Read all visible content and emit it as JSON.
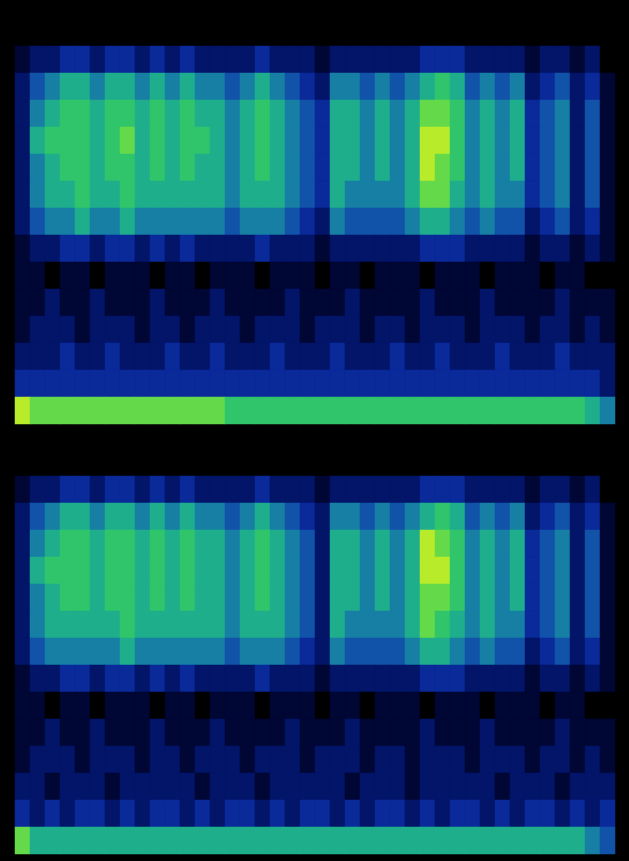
{
  "chart_data": [
    {
      "type": "heatmap",
      "tick_labels": false,
      "zlim": [
        0,
        9
      ],
      "cells": [
        [
          1,
          2,
          2,
          3,
          3,
          2,
          3,
          3,
          2,
          3,
          2,
          3,
          2,
          2,
          2,
          2,
          3,
          2,
          2,
          2,
          1,
          2,
          2,
          2,
          2,
          2,
          2,
          3,
          3,
          3,
          2,
          2,
          2,
          2,
          1,
          2,
          2,
          1,
          2,
          0
        ],
        [
          2,
          4,
          5,
          6,
          6,
          5,
          6,
          6,
          5,
          6,
          5,
          6,
          5,
          5,
          4,
          5,
          6,
          5,
          4,
          3,
          2,
          5,
          5,
          4,
          5,
          4,
          5,
          6,
          7,
          6,
          4,
          5,
          4,
          5,
          2,
          3,
          4,
          2,
          3,
          1
        ],
        [
          2,
          5,
          6,
          7,
          7,
          6,
          7,
          7,
          6,
          7,
          6,
          7,
          6,
          6,
          5,
          6,
          7,
          6,
          5,
          4,
          3,
          6,
          6,
          5,
          6,
          5,
          6,
          8,
          8,
          7,
          5,
          6,
          5,
          6,
          3,
          4,
          5,
          2,
          4,
          1
        ],
        [
          2,
          6,
          7,
          7,
          7,
          6,
          7,
          8,
          6,
          7,
          6,
          7,
          7,
          6,
          5,
          6,
          7,
          6,
          5,
          4,
          3,
          6,
          6,
          5,
          6,
          5,
          6,
          9,
          9,
          7,
          5,
          6,
          5,
          6,
          3,
          4,
          5,
          2,
          4,
          1
        ],
        [
          2,
          5,
          6,
          7,
          7,
          6,
          7,
          7,
          6,
          7,
          6,
          7,
          6,
          6,
          5,
          6,
          7,
          6,
          5,
          4,
          3,
          6,
          6,
          5,
          6,
          5,
          6,
          9,
          8,
          7,
          5,
          6,
          5,
          6,
          3,
          4,
          5,
          2,
          4,
          1
        ],
        [
          2,
          5,
          6,
          6,
          7,
          6,
          6,
          7,
          6,
          6,
          6,
          6,
          6,
          6,
          5,
          6,
          6,
          6,
          5,
          4,
          3,
          6,
          5,
          5,
          5,
          5,
          6,
          8,
          8,
          6,
          5,
          6,
          5,
          5,
          3,
          4,
          5,
          2,
          4,
          1
        ],
        [
          2,
          4,
          5,
          5,
          6,
          5,
          5,
          6,
          5,
          5,
          5,
          5,
          5,
          5,
          4,
          5,
          5,
          5,
          4,
          3,
          2,
          5,
          4,
          4,
          4,
          4,
          5,
          6,
          6,
          5,
          4,
          5,
          4,
          4,
          2,
          3,
          4,
          2,
          3,
          1
        ],
        [
          1,
          2,
          2,
          3,
          3,
          2,
          3,
          3,
          2,
          3,
          2,
          3,
          2,
          2,
          2,
          2,
          3,
          2,
          2,
          2,
          1,
          2,
          2,
          2,
          2,
          2,
          2,
          3,
          3,
          3,
          2,
          2,
          2,
          2,
          1,
          2,
          2,
          1,
          2,
          1
        ],
        [
          1,
          1,
          0,
          1,
          1,
          0,
          1,
          1,
          1,
          0,
          1,
          1,
          0,
          1,
          1,
          1,
          0,
          1,
          1,
          1,
          0,
          1,
          1,
          0,
          1,
          1,
          1,
          0,
          1,
          1,
          1,
          0,
          1,
          1,
          1,
          0,
          1,
          1,
          0,
          0
        ],
        [
          1,
          1,
          2,
          1,
          1,
          2,
          1,
          1,
          1,
          2,
          1,
          1,
          1,
          2,
          1,
          1,
          1,
          1,
          2,
          1,
          1,
          1,
          2,
          1,
          1,
          1,
          1,
          2,
          1,
          1,
          1,
          2,
          1,
          1,
          1,
          1,
          2,
          1,
          1,
          1
        ],
        [
          1,
          2,
          2,
          2,
          1,
          2,
          2,
          2,
          1,
          2,
          2,
          1,
          2,
          2,
          2,
          1,
          2,
          2,
          2,
          1,
          2,
          2,
          2,
          1,
          2,
          2,
          1,
          2,
          2,
          2,
          1,
          2,
          2,
          2,
          1,
          2,
          2,
          1,
          2,
          1
        ],
        [
          2,
          2,
          2,
          3,
          2,
          2,
          3,
          2,
          2,
          2,
          3,
          2,
          2,
          3,
          2,
          2,
          2,
          3,
          2,
          2,
          2,
          3,
          2,
          2,
          2,
          3,
          2,
          2,
          3,
          2,
          2,
          2,
          3,
          2,
          2,
          2,
          3,
          2,
          2,
          2
        ],
        [
          3,
          3,
          3,
          3,
          3,
          3,
          3,
          3,
          3,
          3,
          3,
          3,
          3,
          3,
          3,
          3,
          3,
          3,
          3,
          3,
          3,
          3,
          3,
          3,
          3,
          3,
          3,
          3,
          3,
          3,
          3,
          3,
          3,
          3,
          3,
          3,
          3,
          3,
          3,
          2
        ],
        [
          9,
          8,
          8,
          8,
          8,
          8,
          8,
          8,
          8,
          8,
          8,
          8,
          8,
          8,
          7,
          7,
          7,
          7,
          7,
          7,
          7,
          7,
          7,
          7,
          7,
          7,
          7,
          7,
          7,
          7,
          7,
          7,
          7,
          7,
          7,
          7,
          7,
          7,
          6,
          5
        ]
      ]
    },
    {
      "type": "heatmap",
      "tick_labels": false,
      "zlim": [
        0,
        9
      ],
      "cells": [
        [
          1,
          2,
          2,
          3,
          3,
          2,
          3,
          3,
          2,
          3,
          2,
          3,
          2,
          2,
          2,
          2,
          3,
          2,
          2,
          2,
          1,
          2,
          2,
          2,
          2,
          2,
          2,
          3,
          3,
          3,
          2,
          2,
          2,
          2,
          1,
          2,
          2,
          1,
          2,
          0
        ],
        [
          2,
          4,
          5,
          6,
          6,
          5,
          6,
          6,
          5,
          6,
          5,
          6,
          5,
          5,
          4,
          5,
          6,
          5,
          4,
          3,
          2,
          5,
          5,
          4,
          5,
          4,
          5,
          6,
          7,
          6,
          4,
          5,
          4,
          5,
          2,
          3,
          4,
          2,
          3,
          1
        ],
        [
          2,
          5,
          6,
          7,
          7,
          6,
          7,
          7,
          6,
          7,
          6,
          7,
          6,
          6,
          5,
          6,
          7,
          6,
          5,
          4,
          2,
          6,
          6,
          5,
          6,
          5,
          6,
          9,
          8,
          7,
          5,
          6,
          5,
          6,
          3,
          4,
          5,
          2,
          4,
          1
        ],
        [
          2,
          6,
          7,
          7,
          7,
          6,
          7,
          7,
          6,
          7,
          6,
          7,
          6,
          6,
          5,
          6,
          7,
          6,
          5,
          4,
          2,
          6,
          6,
          5,
          6,
          5,
          6,
          9,
          9,
          7,
          5,
          6,
          5,
          6,
          3,
          4,
          5,
          2,
          4,
          1
        ],
        [
          2,
          5,
          6,
          7,
          7,
          6,
          7,
          7,
          6,
          7,
          6,
          7,
          6,
          6,
          5,
          6,
          7,
          6,
          5,
          4,
          2,
          6,
          6,
          5,
          6,
          5,
          6,
          8,
          8,
          7,
          5,
          6,
          5,
          6,
          3,
          4,
          5,
          2,
          4,
          1
        ],
        [
          2,
          5,
          6,
          6,
          6,
          6,
          6,
          7,
          6,
          6,
          6,
          6,
          6,
          6,
          5,
          6,
          6,
          6,
          5,
          4,
          2,
          6,
          5,
          5,
          5,
          5,
          6,
          8,
          7,
          6,
          5,
          6,
          5,
          5,
          3,
          4,
          5,
          2,
          4,
          1
        ],
        [
          2,
          4,
          5,
          5,
          5,
          5,
          5,
          6,
          5,
          5,
          5,
          5,
          5,
          5,
          4,
          5,
          5,
          5,
          4,
          3,
          2,
          5,
          4,
          4,
          4,
          4,
          5,
          6,
          6,
          5,
          4,
          5,
          4,
          4,
          2,
          3,
          4,
          2,
          3,
          1
        ],
        [
          1,
          2,
          2,
          3,
          3,
          2,
          3,
          3,
          2,
          3,
          2,
          3,
          2,
          2,
          2,
          2,
          3,
          2,
          2,
          2,
          1,
          2,
          2,
          2,
          2,
          2,
          2,
          3,
          3,
          3,
          2,
          2,
          2,
          2,
          1,
          2,
          2,
          1,
          2,
          1
        ],
        [
          1,
          1,
          0,
          1,
          1,
          0,
          1,
          1,
          1,
          0,
          1,
          1,
          0,
          1,
          1,
          1,
          0,
          1,
          1,
          1,
          0,
          1,
          1,
          0,
          1,
          1,
          1,
          0,
          1,
          1,
          1,
          0,
          1,
          1,
          1,
          0,
          1,
          1,
          0,
          0
        ],
        [
          1,
          1,
          2,
          1,
          1,
          2,
          1,
          1,
          1,
          2,
          1,
          1,
          1,
          2,
          1,
          1,
          1,
          1,
          2,
          1,
          1,
          1,
          2,
          1,
          1,
          1,
          1,
          2,
          1,
          1,
          1,
          2,
          1,
          1,
          1,
          1,
          2,
          1,
          1,
          1
        ],
        [
          1,
          2,
          2,
          2,
          1,
          2,
          2,
          2,
          1,
          2,
          2,
          1,
          2,
          2,
          2,
          1,
          2,
          2,
          2,
          1,
          2,
          2,
          2,
          1,
          2,
          2,
          1,
          2,
          2,
          2,
          1,
          2,
          2,
          2,
          1,
          2,
          2,
          1,
          2,
          1
        ],
        [
          2,
          2,
          1,
          2,
          2,
          2,
          1,
          2,
          2,
          2,
          2,
          2,
          1,
          2,
          2,
          2,
          1,
          2,
          2,
          2,
          2,
          2,
          1,
          2,
          2,
          2,
          1,
          2,
          2,
          2,
          2,
          2,
          1,
          2,
          2,
          2,
          1,
          2,
          2,
          2
        ],
        [
          3,
          2,
          3,
          2,
          3,
          3,
          2,
          3,
          2,
          3,
          3,
          2,
          3,
          2,
          3,
          3,
          2,
          3,
          2,
          3,
          3,
          2,
          3,
          2,
          3,
          3,
          2,
          3,
          2,
          3,
          3,
          2,
          3,
          2,
          3,
          3,
          2,
          3,
          2,
          3
        ],
        [
          8,
          6,
          6,
          6,
          6,
          6,
          6,
          6,
          6,
          6,
          6,
          6,
          6,
          6,
          6,
          6,
          6,
          6,
          6,
          6,
          6,
          6,
          6,
          6,
          6,
          6,
          6,
          6,
          6,
          6,
          6,
          6,
          6,
          6,
          6,
          6,
          6,
          6,
          5,
          4
        ]
      ]
    }
  ]
}
